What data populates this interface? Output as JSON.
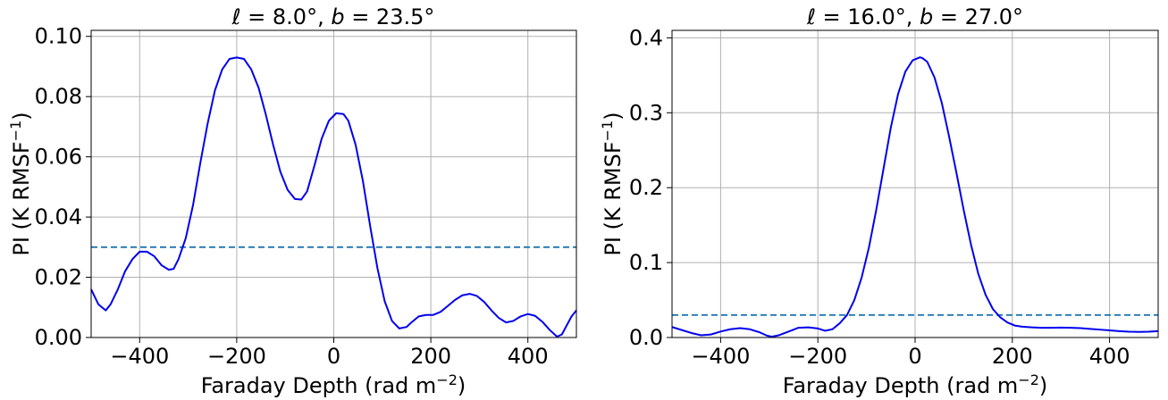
{
  "chart_data": [
    {
      "type": "line",
      "title": "ℓ = 8.0°, b = 23.5°",
      "title_parts": {
        "l_sym": "ℓ",
        "l_val": " = 8.0°, ",
        "b_sym": "b",
        "b_val": " = 23.5°"
      },
      "xlabel_main": "Faraday Depth (rad m",
      "xlabel_sup": "−2",
      "xlabel_end": ")",
      "ylabel_main": "PI (K RMSF",
      "ylabel_sup": "−1",
      "ylabel_end": ")",
      "xlim": [
        -500,
        500
      ],
      "ylim": [
        0,
        0.102
      ],
      "grid": true,
      "xticks": [
        -400,
        -200,
        0,
        200,
        400
      ],
      "xtick_labels": [
        "−400",
        "−200",
        "0",
        "200",
        "400"
      ],
      "yticks": [
        0,
        0.02,
        0.04,
        0.06,
        0.08,
        0.1
      ],
      "ytick_labels": [
        "0.00",
        "0.02",
        "0.04",
        "0.06",
        "0.08",
        "0.10"
      ],
      "series": [
        {
          "color": "#0000ee",
          "x": [
            -500,
            -485,
            -470,
            -460,
            -445,
            -430,
            -415,
            -400,
            -385,
            -370,
            -355,
            -340,
            -330,
            -320,
            -305,
            -290,
            -275,
            -260,
            -245,
            -230,
            -215,
            -200,
            -185,
            -170,
            -155,
            -140,
            -125,
            -110,
            -95,
            -80,
            -67,
            -55,
            -40,
            -25,
            -10,
            5,
            20,
            30,
            45,
            60,
            75,
            90,
            105,
            120,
            135,
            150,
            160,
            175,
            190,
            205,
            220,
            235,
            250,
            265,
            280,
            295,
            310,
            325,
            340,
            355,
            370,
            385,
            400,
            415,
            430,
            445,
            460,
            470,
            480,
            490,
            500
          ],
          "y": [
            0.016,
            0.011,
            0.009,
            0.011,
            0.016,
            0.022,
            0.026,
            0.0285,
            0.0285,
            0.027,
            0.024,
            0.0225,
            0.0228,
            0.026,
            0.033,
            0.044,
            0.058,
            0.071,
            0.082,
            0.089,
            0.0925,
            0.093,
            0.0925,
            0.089,
            0.083,
            0.074,
            0.064,
            0.055,
            0.049,
            0.046,
            0.0458,
            0.0485,
            0.057,
            0.066,
            0.072,
            0.0745,
            0.0742,
            0.072,
            0.064,
            0.052,
            0.037,
            0.023,
            0.012,
            0.0055,
            0.003,
            0.0035,
            0.005,
            0.007,
            0.0075,
            0.0075,
            0.0085,
            0.0105,
            0.0125,
            0.014,
            0.0145,
            0.0138,
            0.0118,
            0.009,
            0.0065,
            0.005,
            0.0055,
            0.007,
            0.0078,
            0.0072,
            0.0052,
            0.0025,
            0.0003,
            0.001,
            0.004,
            0.007,
            0.009
          ]
        }
      ],
      "threshold": {
        "y": 0.03,
        "color": "#1f77b4"
      }
    },
    {
      "type": "line",
      "title": "ℓ = 16.0°, b = 27.0°",
      "title_parts": {
        "l_sym": "ℓ",
        "l_val": " = 16.0°, ",
        "b_sym": "b",
        "b_val": " = 27.0°"
      },
      "xlabel_main": "Faraday Depth (rad m",
      "xlabel_sup": "−2",
      "xlabel_end": ")",
      "ylabel_main": "PI (K RMSF",
      "ylabel_sup": "−1",
      "ylabel_end": ")",
      "xlim": [
        -500,
        500
      ],
      "ylim": [
        0,
        0.41
      ],
      "grid": true,
      "xticks": [
        -400,
        -200,
        0,
        200,
        400
      ],
      "xtick_labels": [
        "−400",
        "−200",
        "0",
        "200",
        "400"
      ],
      "yticks": [
        0,
        0.1,
        0.2,
        0.3,
        0.4
      ],
      "ytick_labels": [
        "0.0",
        "0.1",
        "0.2",
        "0.3",
        "0.4"
      ],
      "series": [
        {
          "color": "#0000ee",
          "x": [
            -500,
            -480,
            -460,
            -440,
            -420,
            -400,
            -380,
            -360,
            -340,
            -320,
            -305,
            -295,
            -280,
            -260,
            -240,
            -220,
            -200,
            -185,
            -170,
            -155,
            -140,
            -125,
            -110,
            -95,
            -80,
            -65,
            -50,
            -35,
            -20,
            -5,
            10,
            15,
            25,
            40,
            55,
            70,
            85,
            100,
            115,
            130,
            145,
            160,
            175,
            190,
            205,
            220,
            240,
            260,
            280,
            300,
            320,
            340,
            360,
            380,
            400,
            420,
            440,
            460,
            480,
            500
          ],
          "y": [
            0.014,
            0.01,
            0.006,
            0.003,
            0.004,
            0.008,
            0.011,
            0.0125,
            0.011,
            0.007,
            0.0025,
            0.001,
            0.003,
            0.008,
            0.013,
            0.0135,
            0.012,
            0.009,
            0.011,
            0.019,
            0.03,
            0.05,
            0.08,
            0.12,
            0.17,
            0.225,
            0.28,
            0.325,
            0.355,
            0.37,
            0.374,
            0.373,
            0.368,
            0.347,
            0.313,
            0.268,
            0.22,
            0.17,
            0.124,
            0.085,
            0.057,
            0.038,
            0.027,
            0.02,
            0.016,
            0.0145,
            0.0135,
            0.013,
            0.013,
            0.0132,
            0.013,
            0.0125,
            0.0115,
            0.0105,
            0.0095,
            0.0085,
            0.0078,
            0.0075,
            0.0078,
            0.0085
          ]
        }
      ],
      "threshold": {
        "y": 0.03,
        "color": "#1f77b4"
      }
    }
  ]
}
